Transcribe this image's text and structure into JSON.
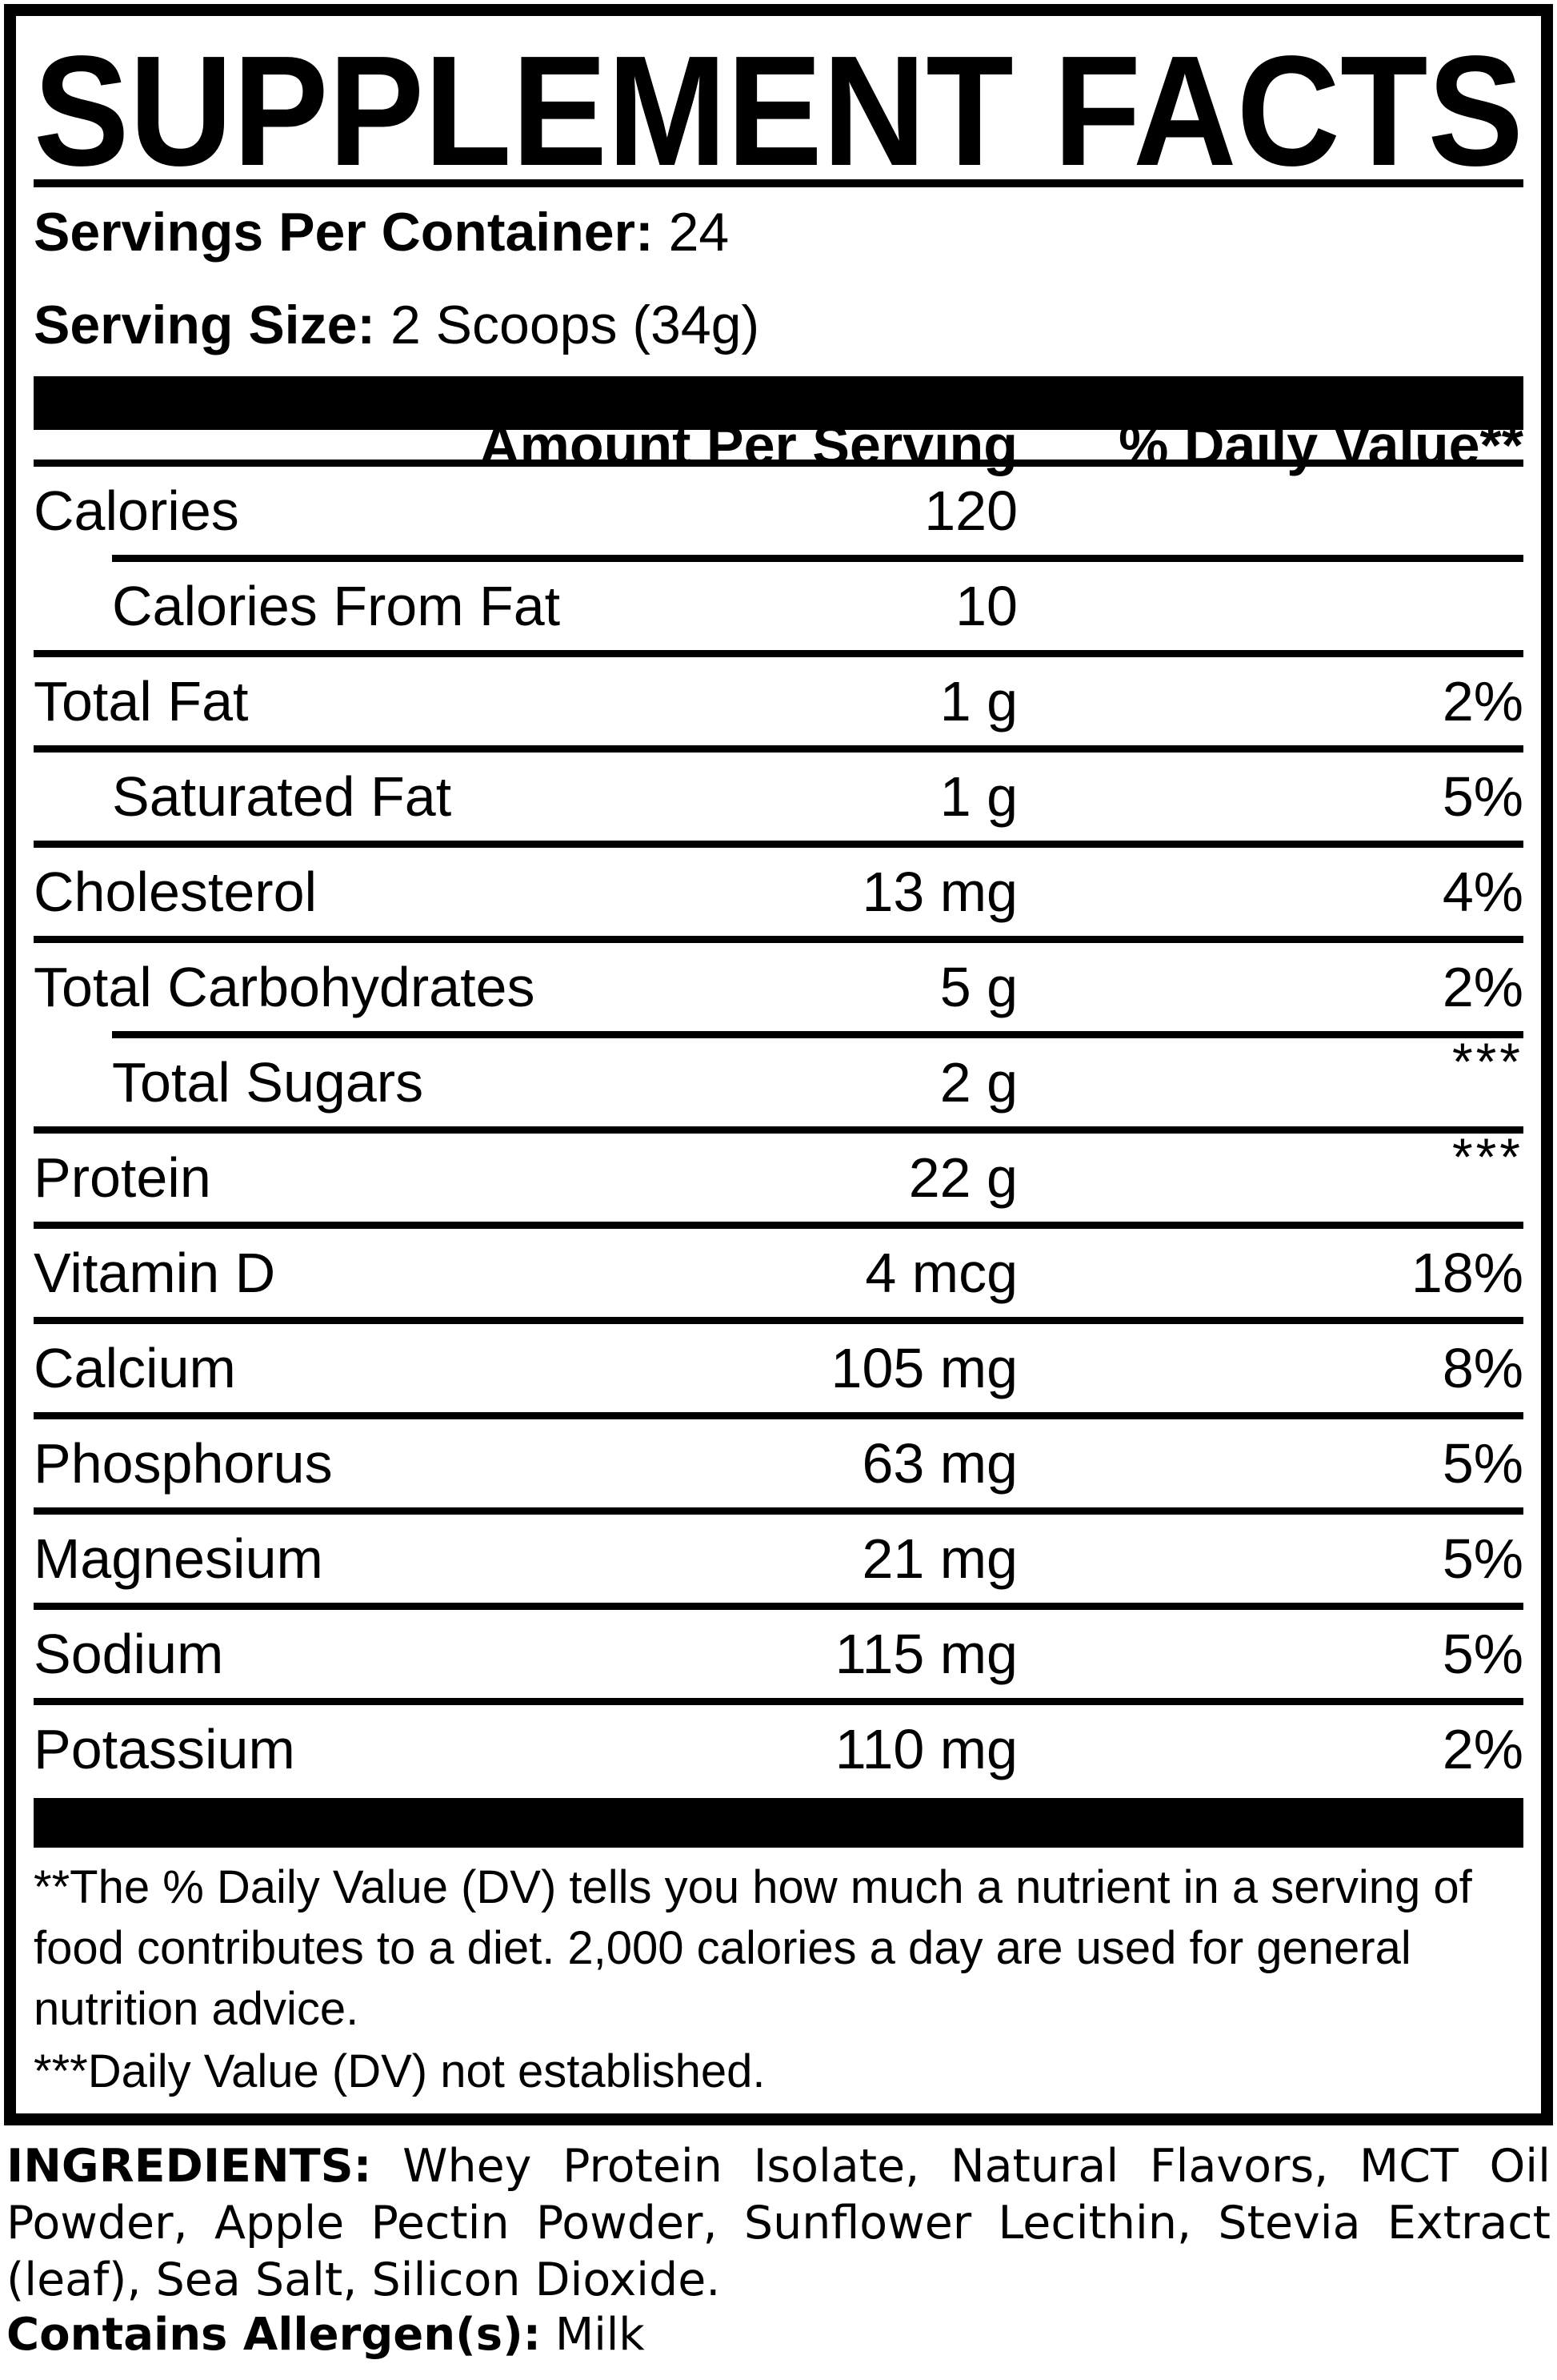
{
  "title": "SUPPLEMENT FACTS",
  "serving_info": {
    "servings_label": "Servings Per Container:",
    "servings_value": "24",
    "size_label": "Serving Size:",
    "size_value": "2 Scoops (34g)"
  },
  "table": {
    "amount_header": "Amount Per Serving",
    "dv_header": "% Daily Value**",
    "rows": [
      {
        "name": "Calories",
        "amount": "120",
        "dv": ""
      },
      {
        "name": "Calories From Fat",
        "amount": "10",
        "dv": ""
      },
      {
        "name": "Total Fat",
        "amount": "1 g",
        "dv": "2%"
      },
      {
        "name": "Saturated Fat",
        "amount": "1 g",
        "dv": "5%"
      },
      {
        "name": "Cholesterol",
        "amount": "13 mg",
        "dv": "4%"
      },
      {
        "name": "Total Carbohydrates",
        "amount": "5 g",
        "dv": "2%"
      },
      {
        "name": "Total Sugars",
        "amount": "2 g",
        "dv": "***"
      },
      {
        "name": "Protein",
        "amount": "22 g",
        "dv": "***"
      },
      {
        "name": "Vitamin D",
        "amount": "4 mcg",
        "dv": "18%"
      },
      {
        "name": "Calcium",
        "amount": "105 mg",
        "dv": "8%"
      },
      {
        "name": "Phosphorus",
        "amount": "63 mg",
        "dv": "5%"
      },
      {
        "name": "Magnesium",
        "amount": "21 mg",
        "dv": "5%"
      },
      {
        "name": "Sodium",
        "amount": "115 mg",
        "dv": "5%"
      },
      {
        "name": "Potassium",
        "amount": "110 mg",
        "dv": "2%"
      }
    ]
  },
  "footnotes": {
    "dv_explanation": "**The % Daily Value (DV) tells you how much a nutrient in a serving of food contributes to a diet. 2,000 calories a day are used for general nutrition advice.",
    "not_established": "***Daily Value (DV) not established."
  },
  "ingredients": {
    "label": "INGREDIENTS:",
    "list": "Whey Protein Isolate, Natural Flavors, MCT Oil Powder, Apple Pectin Powder, Sunflower Lecithin, Stevia Extract (leaf), Sea Salt, Silicon Dioxide.",
    "allergen_label": "Contains Allergen(s):",
    "allergen_value": "Milk"
  },
  "colors": {
    "text": "#000000",
    "background": "#ffffff"
  }
}
